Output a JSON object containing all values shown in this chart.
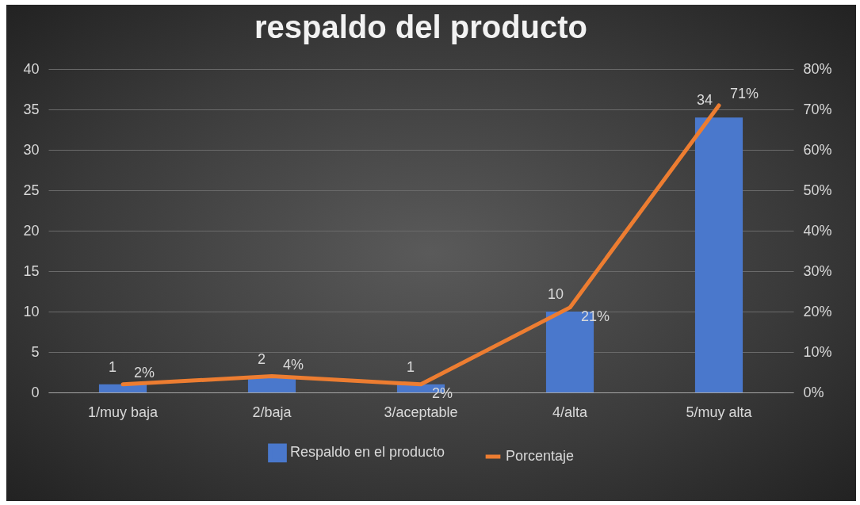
{
  "chart_data": {
    "type": "bar",
    "title": "respaldo del producto",
    "categories": [
      "1/muy baja",
      "2/baja",
      "3/aceptable",
      "4/alta",
      "5/muy alta"
    ],
    "series": [
      {
        "name": "Respaldo en el producto",
        "color": "#4a78cc",
        "values": [
          1,
          2,
          1,
          10,
          34
        ],
        "value_labels": [
          "1",
          "2",
          "1",
          "10",
          "34"
        ]
      },
      {
        "name": "Porcentaje",
        "type": "line",
        "axis": "y2",
        "color": "#ed7d31",
        "values": [
          2,
          4,
          2,
          21,
          71
        ],
        "value_labels": [
          "2%",
          "4%",
          "2%",
          "21%",
          "71%"
        ]
      }
    ],
    "ylim": [
      0,
      40
    ],
    "yticks": [
      0,
      5,
      10,
      15,
      20,
      25,
      30,
      35,
      40
    ],
    "y2lim": [
      0,
      80
    ],
    "y2ticks": [
      {
        "value": 0,
        "label": "0%"
      },
      {
        "value": 10,
        "label": "10%"
      },
      {
        "value": 20,
        "label": "20%"
      },
      {
        "value": 30,
        "label": "30%"
      },
      {
        "value": 40,
        "label": "40%"
      },
      {
        "value": 50,
        "label": "50%"
      },
      {
        "value": 60,
        "label": "60%"
      },
      {
        "value": 70,
        "label": "70%"
      },
      {
        "value": 80,
        "label": "80%"
      }
    ],
    "grid": "y",
    "legend": "bottom",
    "marker": "none",
    "line_style": "solid"
  }
}
